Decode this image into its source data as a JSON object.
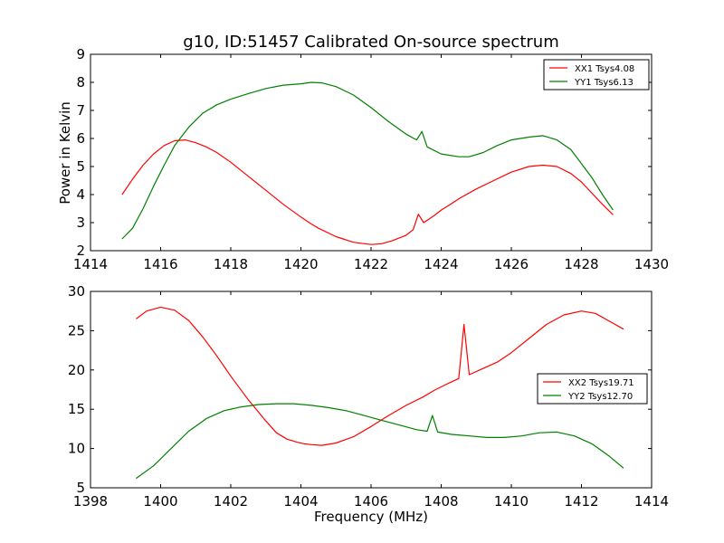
{
  "chart_data": [
    {
      "type": "line",
      "title": "g10, ID:51457 Calibrated On-source spectrum",
      "xlabel": "",
      "ylabel": "Power in Kelvin",
      "xlim": [
        1414,
        1430
      ],
      "ylim": [
        2,
        9
      ],
      "xticks": [
        1414,
        1416,
        1418,
        1420,
        1422,
        1424,
        1426,
        1428,
        1430
      ],
      "yticks": [
        2,
        3,
        4,
        5,
        6,
        7,
        8,
        9
      ],
      "legend_position": "top-right",
      "series": [
        {
          "name": "XX1 Tsys4.08",
          "color": "#ff0000",
          "x": [
            1414.9,
            1415.2,
            1415.5,
            1415.8,
            1416.1,
            1416.4,
            1416.7,
            1417.0,
            1417.3,
            1417.6,
            1418.0,
            1418.5,
            1419.0,
            1419.5,
            1420.0,
            1420.3,
            1420.5,
            1421.0,
            1421.5,
            1422.0,
            1422.3,
            1422.6,
            1423.0,
            1423.2,
            1423.35,
            1423.5,
            1423.8,
            1424.0,
            1424.2,
            1424.5,
            1425.0,
            1425.5,
            1426.0,
            1426.5,
            1426.9,
            1427.3,
            1427.7,
            1428.0,
            1428.3,
            1428.6,
            1428.9
          ],
          "y": [
            4.0,
            4.55,
            5.05,
            5.45,
            5.75,
            5.92,
            5.95,
            5.85,
            5.7,
            5.5,
            5.15,
            4.65,
            4.15,
            3.65,
            3.2,
            2.95,
            2.8,
            2.5,
            2.3,
            2.22,
            2.25,
            2.35,
            2.55,
            2.75,
            3.3,
            3.0,
            3.25,
            3.45,
            3.6,
            3.85,
            4.2,
            4.5,
            4.8,
            5.0,
            5.05,
            5.0,
            4.75,
            4.45,
            4.05,
            3.65,
            3.28
          ]
        },
        {
          "name": "YY1 Tsys6.13",
          "color": "#008000",
          "x": [
            1414.9,
            1415.2,
            1415.5,
            1415.8,
            1416.1,
            1416.4,
            1416.8,
            1417.2,
            1417.6,
            1418.0,
            1418.5,
            1419.0,
            1419.5,
            1420.0,
            1420.3,
            1420.6,
            1421.0,
            1421.5,
            1422.0,
            1422.5,
            1423.0,
            1423.3,
            1423.45,
            1423.6,
            1424.0,
            1424.5,
            1424.8,
            1425.2,
            1425.6,
            1426.0,
            1426.5,
            1426.9,
            1427.3,
            1427.7,
            1428.0,
            1428.3,
            1428.6,
            1428.9
          ],
          "y": [
            2.42,
            2.8,
            3.5,
            4.3,
            5.05,
            5.75,
            6.4,
            6.9,
            7.2,
            7.4,
            7.6,
            7.78,
            7.9,
            7.95,
            8.0,
            7.98,
            7.85,
            7.55,
            7.1,
            6.6,
            6.15,
            5.95,
            6.25,
            5.7,
            5.45,
            5.35,
            5.35,
            5.5,
            5.75,
            5.95,
            6.05,
            6.1,
            5.95,
            5.6,
            5.1,
            4.6,
            4.0,
            3.45
          ]
        }
      ]
    },
    {
      "type": "line",
      "title": "",
      "xlabel": "Frequency (MHz)",
      "ylabel": "",
      "xlim": [
        1398,
        1414
      ],
      "ylim": [
        5,
        30
      ],
      "xticks": [
        1398,
        1400,
        1402,
        1404,
        1406,
        1408,
        1410,
        1412,
        1414
      ],
      "yticks": [
        5,
        10,
        15,
        20,
        25,
        30
      ],
      "legend_position": "center-right",
      "series": [
        {
          "name": "XX2 Tsys19.71",
          "color": "#ff0000",
          "x": [
            1399.3,
            1399.6,
            1400.0,
            1400.4,
            1400.8,
            1401.2,
            1401.6,
            1402.0,
            1402.5,
            1403.0,
            1403.3,
            1403.6,
            1403.9,
            1404.1,
            1404.3,
            1404.6,
            1405.0,
            1405.5,
            1406.0,
            1406.5,
            1407.0,
            1407.5,
            1407.8,
            1408.2,
            1408.5,
            1408.65,
            1408.8,
            1409.2,
            1409.6,
            1410.0,
            1410.5,
            1411.0,
            1411.5,
            1412.0,
            1412.4,
            1412.8,
            1413.2
          ],
          "y": [
            26.5,
            27.5,
            28.0,
            27.6,
            26.3,
            24.2,
            21.8,
            19.2,
            16.2,
            13.5,
            12.0,
            11.2,
            10.8,
            10.6,
            10.5,
            10.4,
            10.7,
            11.5,
            12.8,
            14.2,
            15.5,
            16.6,
            17.4,
            18.3,
            18.9,
            25.8,
            19.4,
            20.2,
            21.0,
            22.2,
            24.0,
            25.8,
            27.0,
            27.5,
            27.2,
            26.2,
            25.2
          ]
        },
        {
          "name": "YY2 Tsys12.70",
          "color": "#008000",
          "x": [
            1399.3,
            1399.8,
            1400.3,
            1400.8,
            1401.3,
            1401.8,
            1402.3,
            1402.8,
            1403.3,
            1403.8,
            1404.3,
            1404.8,
            1405.3,
            1405.8,
            1406.3,
            1406.8,
            1407.3,
            1407.6,
            1407.75,
            1407.9,
            1408.3,
            1408.8,
            1409.3,
            1409.8,
            1410.3,
            1410.8,
            1411.3,
            1411.8,
            1412.3,
            1412.8,
            1413.2
          ],
          "y": [
            6.2,
            7.8,
            10.0,
            12.2,
            13.8,
            14.8,
            15.3,
            15.6,
            15.7,
            15.7,
            15.5,
            15.2,
            14.8,
            14.2,
            13.6,
            13.0,
            12.4,
            12.2,
            14.2,
            12.1,
            11.8,
            11.6,
            11.4,
            11.4,
            11.6,
            12.0,
            12.1,
            11.6,
            10.6,
            9.0,
            7.5
          ]
        }
      ]
    }
  ]
}
